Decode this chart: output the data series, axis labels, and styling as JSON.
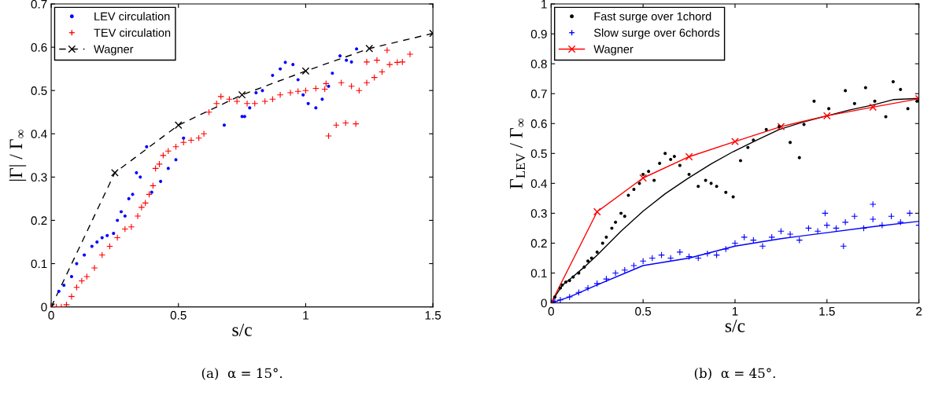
{
  "chart_data": [
    {
      "type": "scatter",
      "xlabel": "s/c",
      "ylabel": "|Γ| / Γ$_{∞}$",
      "xlim": [
        0,
        1.5
      ],
      "ylim": [
        0,
        0.7
      ],
      "xticks": [
        0,
        0.5,
        1,
        1.5
      ],
      "yticks": [
        0,
        0.1,
        0.2,
        0.3,
        0.4,
        0.5,
        0.6,
        0.7
      ],
      "grid": false,
      "legend": "top left",
      "annotations": [
        "(a)  α = 15°."
      ],
      "series": [
        {
          "name": "LEV circulation",
          "color": "#0000ff",
          "marker": "circle",
          "x": [
            0.03,
            0.05,
            0.08,
            0.1,
            0.13,
            0.16,
            0.18,
            0.2,
            0.22,
            0.245,
            0.26,
            0.275,
            0.29,
            0.305,
            0.32,
            0.335,
            0.35,
            0.375,
            0.395,
            0.43,
            0.46,
            0.49,
            0.52,
            0.68,
            0.75,
            0.76,
            0.78,
            0.805,
            0.83,
            0.87,
            0.9,
            0.92,
            0.95,
            0.97,
            0.99,
            1.01,
            1.04,
            1.065,
            1.09,
            1.105,
            1.135,
            1.16,
            1.18,
            1.2
          ],
          "values": [
            0.036,
            0.05,
            0.07,
            0.1,
            0.12,
            0.14,
            0.15,
            0.16,
            0.165,
            0.17,
            0.2,
            0.22,
            0.21,
            0.25,
            0.26,
            0.31,
            0.3,
            0.37,
            0.265,
            0.29,
            0.32,
            0.34,
            0.39,
            0.42,
            0.44,
            0.44,
            0.46,
            0.495,
            0.5,
            0.535,
            0.55,
            0.565,
            0.56,
            0.525,
            0.49,
            0.47,
            0.46,
            0.48,
            0.51,
            0.54,
            0.58,
            0.57,
            0.566,
            0.596
          ]
        },
        {
          "name": "TEV circulation",
          "color": "#ff0000",
          "marker": "cross",
          "x": [
            0,
            0.02,
            0.04,
            0.06,
            0.08,
            0.1,
            0.12,
            0.14,
            0.17,
            0.2,
            0.23,
            0.26,
            0.29,
            0.315,
            0.34,
            0.355,
            0.37,
            0.385,
            0.4,
            0.41,
            0.425,
            0.44,
            0.46,
            0.49,
            0.52,
            0.55,
            0.58,
            0.6,
            0.62,
            0.65,
            0.667,
            0.7,
            0.73,
            0.77,
            0.8,
            0.84,
            0.87,
            0.9,
            0.94,
            0.97,
            1.0,
            1.04,
            1.075,
            1.08,
            1.09,
            1.12,
            1.14,
            1.157,
            1.18,
            1.197,
            1.21,
            1.24,
            1.24,
            1.27,
            1.28,
            1.3,
            1.32,
            1.33,
            1.36,
            1.38,
            1.41
          ],
          "values": [
            0,
            0,
            0,
            0.005,
            0.024,
            0.045,
            0.06,
            0.07,
            0.09,
            0.12,
            0.14,
            0.16,
            0.18,
            0.185,
            0.21,
            0.23,
            0.24,
            0.26,
            0.28,
            0.32,
            0.33,
            0.35,
            0.36,
            0.37,
            0.38,
            0.385,
            0.39,
            0.4,
            0.45,
            0.47,
            0.486,
            0.48,
            0.475,
            0.47,
            0.47,
            0.475,
            0.48,
            0.49,
            0.495,
            0.498,
            0.5,
            0.505,
            0.503,
            0.516,
            0.395,
            0.42,
            0.518,
            0.425,
            0.51,
            0.423,
            0.5,
            0.518,
            0.566,
            0.53,
            0.57,
            0.543,
            0.593,
            0.56,
            0.565,
            0.566,
            0.584
          ]
        },
        {
          "name": "Wagner",
          "type": "line",
          "color": "#000000",
          "marker": "cross",
          "line_style": "dashed",
          "x": [
            0,
            0.25,
            0.5,
            0.75,
            1,
            1.25,
            1.5
          ],
          "values": [
            0,
            0.31,
            0.42,
            0.49,
            0.545,
            0.597,
            0.632
          ]
        }
      ]
    },
    {
      "type": "scatter",
      "xlabel": "s/c",
      "ylabel": "Γ$_{LEV}$ / Γ$_{∞}$",
      "xlim": [
        0,
        2
      ],
      "ylim": [
        0,
        1
      ],
      "xticks": [
        0,
        0.5,
        1,
        1.5,
        2
      ],
      "yticks": [
        0,
        0.1,
        0.2,
        0.3,
        0.4,
        0.5,
        0.6,
        0.7,
        0.8,
        0.9,
        1
      ],
      "grid": false,
      "legend": "top left",
      "annotations": [
        "(b)  α = 45°."
      ],
      "series": [
        {
          "name": "Fast surge over 1chord",
          "color": "#000000",
          "marker": "circle",
          "x": [
            0.02,
            0.05,
            0.06,
            0.08,
            0.1,
            0.12,
            0.15,
            0.18,
            0.2,
            0.22,
            0.25,
            0.28,
            0.3,
            0.33,
            0.35,
            0.38,
            0.4,
            0.42,
            0.45,
            0.48,
            0.5,
            0.53,
            0.56,
            0.59,
            0.62,
            0.65,
            0.67,
            0.7,
            0.75,
            0.8,
            0.84,
            0.87,
            0.9,
            0.95,
            0.99,
            1.03,
            1.07,
            1.1,
            1.17,
            1.24,
            1.3,
            1.35,
            1.375,
            1.43,
            1.51,
            1.6,
            1.65,
            1.71,
            1.76,
            1.82,
            1.86,
            1.9,
            1.94,
            1.99
          ],
          "values": [
            0.02,
            0.05,
            0.06,
            0.07,
            0.075,
            0.087,
            0.1,
            0.12,
            0.14,
            0.15,
            0.17,
            0.2,
            0.22,
            0.25,
            0.27,
            0.3,
            0.29,
            0.36,
            0.38,
            0.4,
            0.43,
            0.44,
            0.41,
            0.467,
            0.5,
            0.48,
            0.49,
            0.46,
            0.43,
            0.39,
            0.41,
            0.4,
            0.39,
            0.37,
            0.355,
            0.476,
            0.52,
            0.545,
            0.58,
            0.59,
            0.537,
            0.486,
            0.597,
            0.675,
            0.65,
            0.71,
            0.667,
            0.72,
            0.675,
            0.623,
            0.74,
            0.714,
            0.65,
            0.675
          ]
        },
        {
          "name": "Slow surge over 6chords",
          "color": "#0000ff",
          "marker": "cross",
          "x": [
            0.02,
            0.05,
            0.1,
            0.15,
            0.2,
            0.25,
            0.3,
            0.35,
            0.4,
            0.45,
            0.5,
            0.55,
            0.6,
            0.65,
            0.7,
            0.75,
            0.8,
            0.85,
            0.9,
            0.95,
            1.0,
            1.05,
            1.1,
            1.15,
            1.2,
            1.25,
            1.3,
            1.35,
            1.4,
            1.45,
            1.49,
            1.5,
            1.55,
            1.59,
            1.6,
            1.65,
            1.7,
            1.75,
            1.75,
            1.8,
            1.85,
            1.9,
            1.95,
            2.0
          ],
          "values": [
            0.005,
            0.01,
            0.02,
            0.035,
            0.05,
            0.065,
            0.08,
            0.1,
            0.11,
            0.125,
            0.14,
            0.15,
            0.16,
            0.15,
            0.17,
            0.155,
            0.15,
            0.165,
            0.16,
            0.18,
            0.2,
            0.22,
            0.21,
            0.19,
            0.22,
            0.24,
            0.23,
            0.21,
            0.25,
            0.24,
            0.3,
            0.26,
            0.25,
            0.19,
            0.27,
            0.29,
            0.25,
            0.28,
            0.33,
            0.26,
            0.29,
            0.27,
            0.3,
            0.26
          ]
        },
        {
          "type": "line",
          "color": "#000000",
          "marker": "none",
          "line_style": "solid",
          "x": [
            0,
            0.03,
            0.0625,
            0.117,
            0.18,
            0.257,
            0.38,
            0.5,
            0.62,
            0.74,
            0.87,
            0.99,
            1.12,
            1.24,
            1.37,
            1.62,
            1.75,
            1.86,
            2
          ],
          "values": [
            0,
            0.03,
            0.06,
            0.087,
            0.12,
            0.164,
            0.24,
            0.307,
            0.365,
            0.415,
            0.465,
            0.506,
            0.545,
            0.58,
            0.605,
            0.645,
            0.662,
            0.68,
            0.684
          ]
        },
        {
          "type": "line",
          "color": "#0000ff",
          "marker": "none",
          "line_style": "solid",
          "x": [
            0,
            0.1,
            0.25,
            0.5,
            0.75,
            1,
            1.25,
            1.5,
            1.75,
            2
          ],
          "values": [
            0,
            0.02,
            0.06,
            0.125,
            0.15,
            0.19,
            0.215,
            0.235,
            0.255,
            0.273
          ]
        },
        {
          "name": "Wagner",
          "type": "line",
          "color": "#ff0000",
          "marker": "cross",
          "line_style": "solid",
          "x": [
            0,
            0.25,
            0.5,
            0.75,
            1,
            1.25,
            1.5,
            1.75,
            2
          ],
          "values": [
            0,
            0.305,
            0.418,
            0.489,
            0.54,
            0.59,
            0.626,
            0.655,
            0.683
          ]
        }
      ]
    }
  ]
}
